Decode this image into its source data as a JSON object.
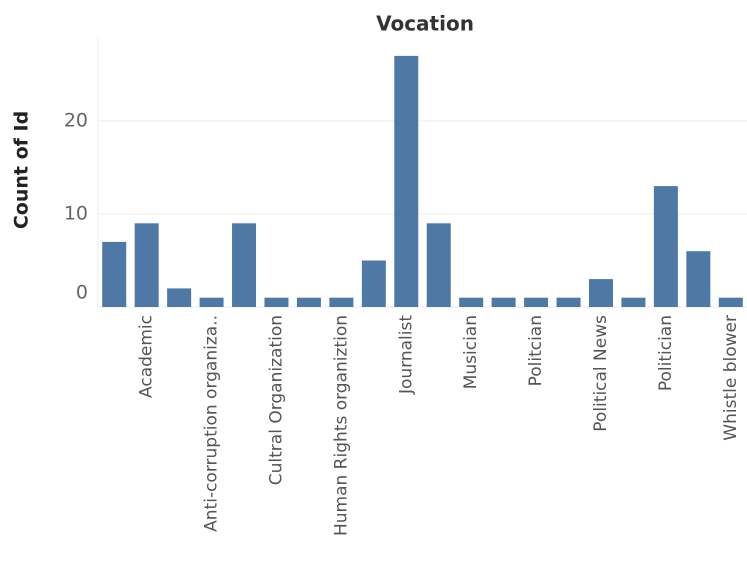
{
  "chart_data": {
    "type": "bar",
    "title": "Vocation",
    "y_label": "Count of Id",
    "categories": [
      null,
      "Academic",
      null,
      "Anti-corruption organiza..",
      null,
      "Cultral Organization",
      null,
      "Human Rights organiztion",
      null,
      "Journalist",
      null,
      "Musician",
      null,
      "Politcian",
      null,
      "Political News",
      null,
      "Politician",
      null,
      "Whistle blower"
    ],
    "values": [
      7,
      9,
      2,
      1,
      9,
      1,
      1,
      1,
      5,
      27,
      9,
      1,
      1,
      1,
      1,
      3,
      1,
      13,
      6,
      1
    ],
    "color": "#4e79a7",
    "ylim": [
      0,
      29
    ],
    "yticks": [
      0,
      10,
      20
    ],
    "grid": true
  }
}
